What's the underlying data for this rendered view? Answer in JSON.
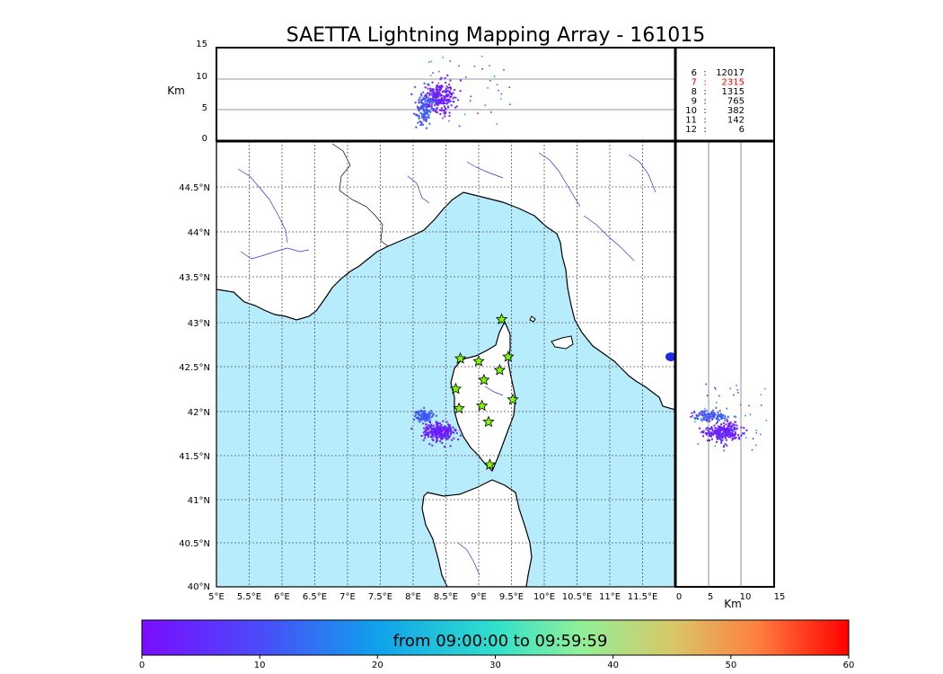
{
  "title": "SAETTA Lightning Mapping Array - 161015",
  "colors": {
    "sea": "#b6ecfb",
    "land": "#ffffff",
    "river": "#3030d0",
    "station": "#7cfc00"
  },
  "altitude_axis": {
    "label": "Km",
    "ticks": [
      "0",
      "5",
      "10",
      "15"
    ],
    "range": [
      0,
      15
    ]
  },
  "map": {
    "lon_ticks": [
      "5°E",
      "5.5°E",
      "6°E",
      "6.5°E",
      "7°E",
      "7.5°E",
      "8°E",
      "8.5°E",
      "9°E",
      "9.5°E",
      "10°E",
      "10.5°E",
      "11°E",
      "11.5°E"
    ],
    "lat_ticks": [
      "40°N",
      "40.5°N",
      "41°N",
      "41.5°N",
      "42°N",
      "42.5°N",
      "43°N",
      "43.5°N",
      "44°N",
      "44.5°N"
    ],
    "lon_range": [
      5,
      12
    ],
    "lat_range": [
      40,
      45
    ]
  },
  "side_axis": {
    "label": "Km",
    "ticks": [
      "0",
      "5",
      "10",
      "15"
    ]
  },
  "stats": [
    {
      "n": "6",
      "count": "12017",
      "color": "#000000"
    },
    {
      "n": "7",
      "count": "2315",
      "color": "#ff0000"
    },
    {
      "n": "8",
      "count": "1315",
      "color": "#000000"
    },
    {
      "n": "9",
      "count": "765",
      "color": "#000000"
    },
    {
      "n": "10",
      "count": "382",
      "color": "#000000"
    },
    {
      "n": "11",
      "count": "142",
      "color": "#000000"
    },
    {
      "n": "12",
      "count": "6",
      "color": "#000000"
    }
  ],
  "colorbar": {
    "label": "from 09:00:00 to 09:59:59",
    "ticks": [
      "0",
      "10",
      "20",
      "30",
      "40",
      "50",
      "60"
    ],
    "range": [
      0,
      60
    ]
  },
  "chart_data": {
    "type": "scatter",
    "title": "SAETTA Lightning Mapping Array - 161015",
    "stations": [
      {
        "lon": 9.35,
        "lat": 43.0
      },
      {
        "lon": 8.72,
        "lat": 42.56
      },
      {
        "lon": 9.0,
        "lat": 42.53
      },
      {
        "lon": 9.45,
        "lat": 42.58
      },
      {
        "lon": 9.08,
        "lat": 42.32
      },
      {
        "lon": 9.32,
        "lat": 42.43
      },
      {
        "lon": 8.65,
        "lat": 42.22
      },
      {
        "lon": 9.52,
        "lat": 42.1
      },
      {
        "lon": 8.7,
        "lat": 42.0
      },
      {
        "lon": 9.05,
        "lat": 42.03
      },
      {
        "lon": 9.15,
        "lat": 41.85
      },
      {
        "lon": 9.17,
        "lat": 41.37
      }
    ],
    "lightning_clusters": [
      {
        "lon": 8.38,
        "lat": 41.75,
        "alt_km": 7,
        "time_min": 3
      },
      {
        "lon": 8.15,
        "lat": 41.93,
        "alt_km": 5,
        "time_min": 12
      }
    ],
    "color_range_minutes": [
      0,
      60
    ]
  }
}
